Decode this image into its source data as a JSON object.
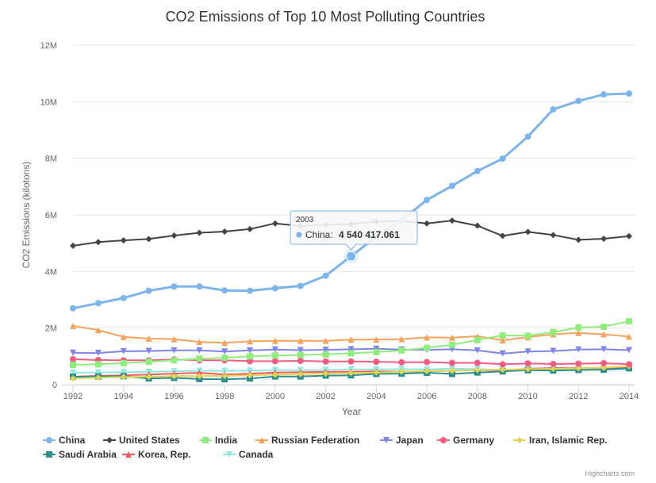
{
  "chart_data": {
    "type": "line",
    "title": "CO2 Emissions of Top 10 Most Polluting Countries",
    "xlabel": "Year",
    "ylabel": "CO2 Emissions (kilotons)",
    "xlim": [
      1992,
      2014
    ],
    "ylim": [
      0,
      12000000
    ],
    "x_ticks": [
      "1992",
      "1994",
      "1996",
      "1998",
      "2000",
      "2002",
      "2004",
      "2006",
      "2008",
      "2010",
      "2012",
      "2014"
    ],
    "y_ticks": [
      {
        "value": 0,
        "label": "0"
      },
      {
        "value": 2000000,
        "label": "2M"
      },
      {
        "value": 4000000,
        "label": "4M"
      },
      {
        "value": 6000000,
        "label": "6M"
      },
      {
        "value": 8000000,
        "label": "8M"
      },
      {
        "value": 10000000,
        "label": "10M"
      },
      {
        "value": 12000000,
        "label": "12M"
      }
    ],
    "grid": "horizontal",
    "legend_position": "bottom",
    "x": [
      1992,
      1993,
      1994,
      1995,
      1996,
      1997,
      1998,
      1999,
      2000,
      2001,
      2002,
      2003,
      2004,
      2005,
      2006,
      2007,
      2008,
      2009,
      2010,
      2011,
      2012,
      2013,
      2014
    ],
    "series": [
      {
        "name": "China",
        "color": "#7cb5ec",
        "marker": "circle",
        "values": [
          2700000,
          2880000,
          3060000,
          3320000,
          3470000,
          3470000,
          3330000,
          3320000,
          3410000,
          3490000,
          3850000,
          4540417,
          5230000,
          5810000,
          6530000,
          7030000,
          7550000,
          7990000,
          8770000,
          9730000,
          10030000,
          10260000,
          10290000
        ]
      },
      {
        "name": "United States",
        "color": "#434348",
        "marker": "diamond",
        "values": [
          4910000,
          5040000,
          5100000,
          5150000,
          5270000,
          5370000,
          5410000,
          5500000,
          5700000,
          5610000,
          5650000,
          5680000,
          5770000,
          5790000,
          5700000,
          5800000,
          5620000,
          5260000,
          5400000,
          5290000,
          5120000,
          5160000,
          5250000
        ]
      },
      {
        "name": "India",
        "color": "#90ed7d",
        "marker": "square",
        "values": [
          700000,
          720000,
          760000,
          810000,
          860000,
          920000,
          950000,
          1000000,
          1030000,
          1050000,
          1070000,
          1110000,
          1150000,
          1210000,
          1300000,
          1410000,
          1580000,
          1740000,
          1730000,
          1860000,
          2020000,
          2050000,
          2240000
        ]
      },
      {
        "name": "Russian Federation",
        "color": "#f7a35c",
        "marker": "triangle",
        "values": [
          2080000,
          1930000,
          1690000,
          1630000,
          1610000,
          1510000,
          1480000,
          1530000,
          1550000,
          1550000,
          1550000,
          1590000,
          1590000,
          1610000,
          1670000,
          1660000,
          1710000,
          1570000,
          1680000,
          1780000,
          1830000,
          1780000,
          1700000
        ]
      },
      {
        "name": "Japan",
        "color": "#8085e9",
        "marker": "triangle-down",
        "values": [
          1130000,
          1120000,
          1180000,
          1190000,
          1210000,
          1210000,
          1170000,
          1210000,
          1240000,
          1220000,
          1230000,
          1250000,
          1270000,
          1240000,
          1230000,
          1250000,
          1210000,
          1100000,
          1170000,
          1190000,
          1240000,
          1250000,
          1220000
        ]
      },
      {
        "name": "Germany",
        "color": "#f15c80",
        "marker": "circle",
        "values": [
          900000,
          870000,
          860000,
          860000,
          890000,
          860000,
          860000,
          830000,
          830000,
          840000,
          820000,
          820000,
          810000,
          790000,
          800000,
          770000,
          770000,
          720000,
          750000,
          730000,
          740000,
          760000,
          720000
        ]
      },
      {
        "name": "Iran, Islamic Rep.",
        "color": "#e4d354",
        "marker": "diamond",
        "values": [
          220000,
          250000,
          270000,
          280000,
          300000,
          300000,
          310000,
          330000,
          350000,
          370000,
          390000,
          410000,
          430000,
          460000,
          480000,
          490000,
          520000,
          530000,
          550000,
          560000,
          580000,
          600000,
          650000
        ]
      },
      {
        "name": "Saudi Arabia",
        "color": "#2b908f",
        "marker": "square",
        "values": [
          280000,
          290000,
          300000,
          220000,
          240000,
          200000,
          190000,
          220000,
          290000,
          290000,
          320000,
          330000,
          380000,
          390000,
          420000,
          380000,
          430000,
          470000,
          510000,
          500000,
          520000,
          530000,
          580000
        ]
      },
      {
        "name": "Korea, Rep.",
        "color": "#f45b5b",
        "marker": "triangle",
        "values": [
          280000,
          310000,
          330000,
          360000,
          390000,
          420000,
          360000,
          390000,
          430000,
          440000,
          450000,
          460000,
          470000,
          460000,
          470000,
          500000,
          510000,
          510000,
          560000,
          590000,
          590000,
          590000,
          590000
        ]
      },
      {
        "name": "Canada",
        "color": "#91e8e1",
        "marker": "triangle-down",
        "values": [
          430000,
          430000,
          440000,
          450000,
          470000,
          490000,
          490000,
          490000,
          520000,
          510000,
          520000,
          540000,
          540000,
          550000,
          540000,
          570000,
          550000,
          520000,
          540000,
          550000,
          540000,
          540000,
          550000
        ]
      }
    ],
    "tooltip": {
      "year": "2003",
      "series": "China",
      "value_text": "4 540 417.061"
    }
  },
  "credits": "Highcharts.com"
}
